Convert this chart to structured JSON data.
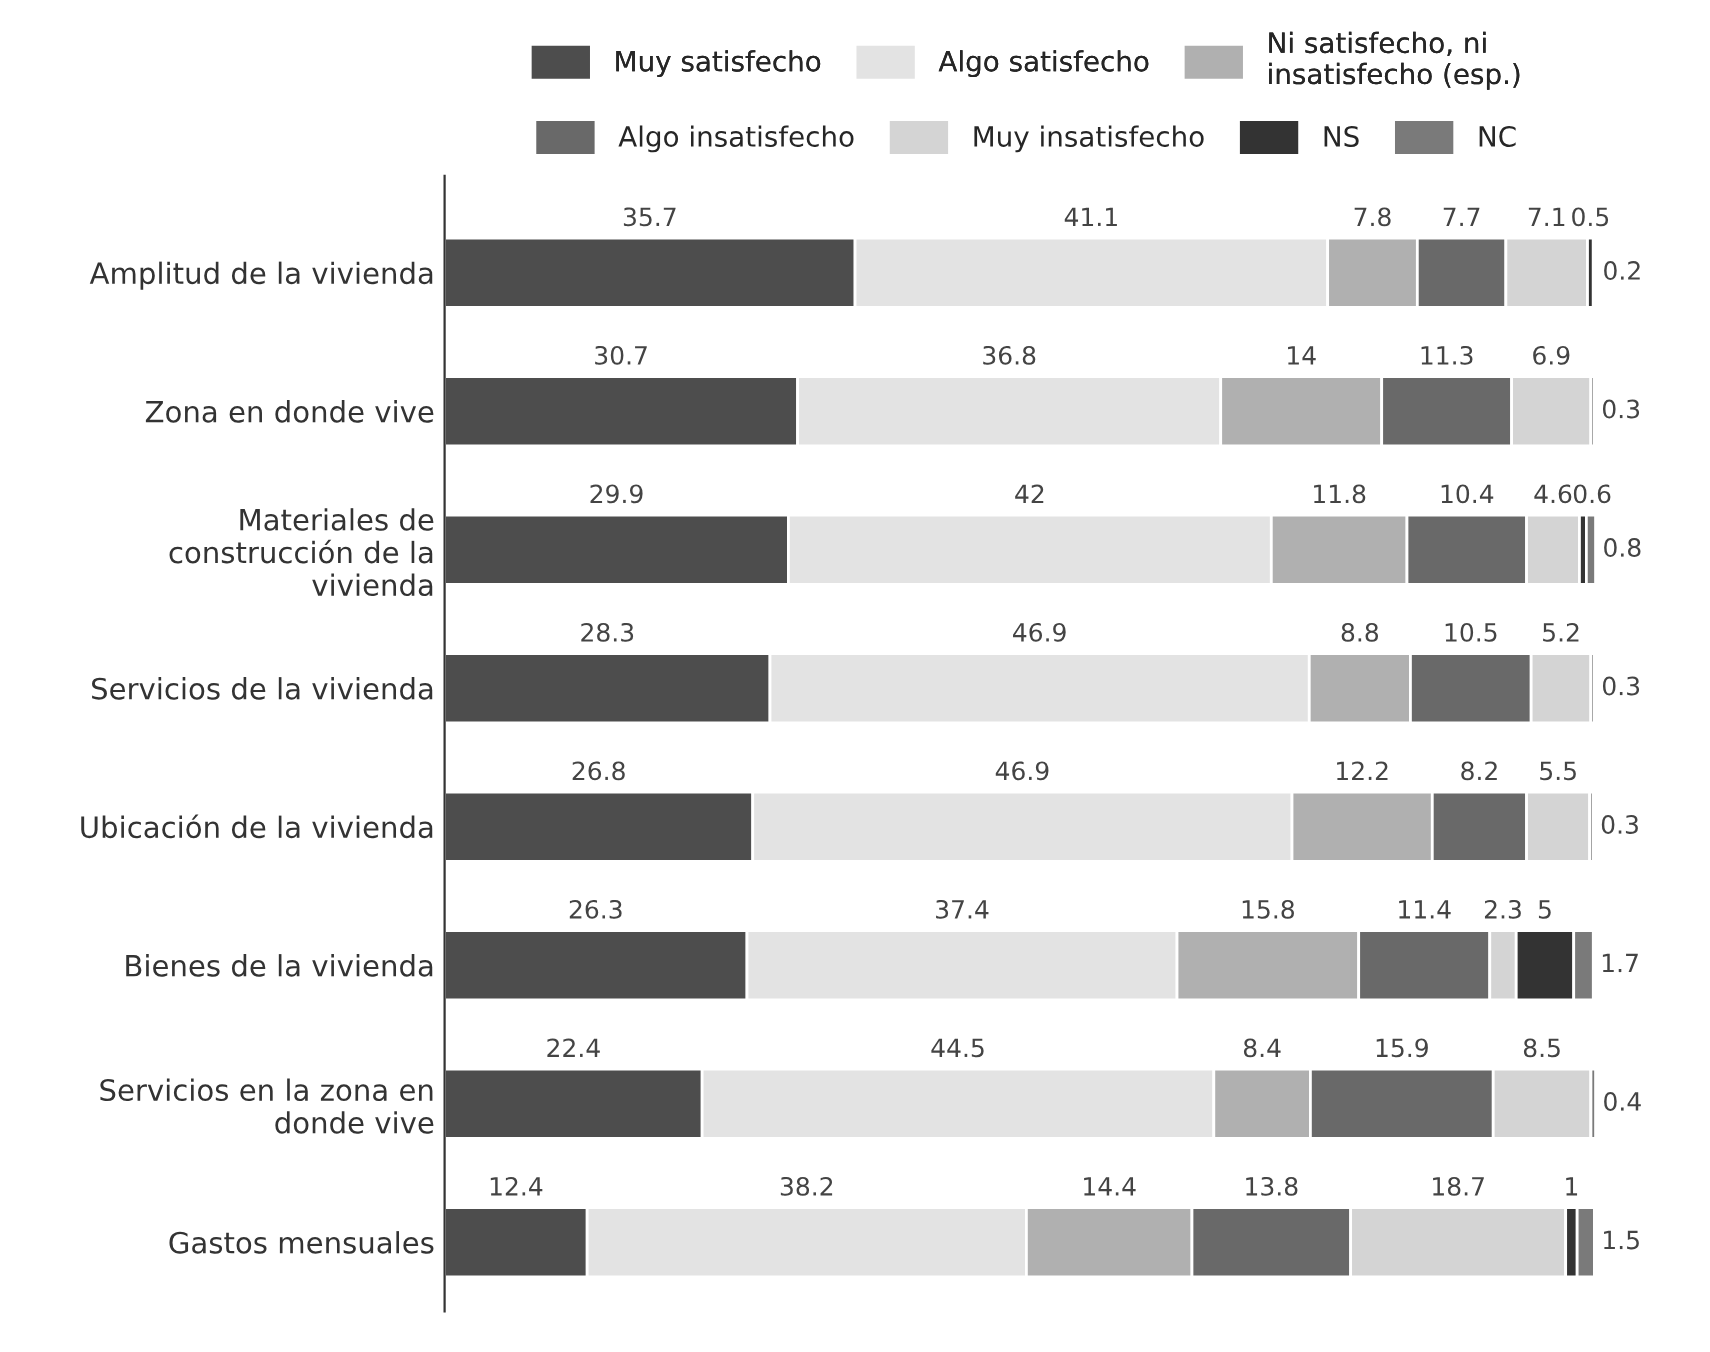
{
  "chart_data": {
    "type": "bar",
    "orientation": "horizontal",
    "stacked": true,
    "data_labels": true,
    "legend": "top",
    "grid": false,
    "categories": [
      "Amplitud de la vivienda",
      "Zona en donde vive",
      "Materiales de construcción de la vivienda",
      "Servicios de la vivienda",
      "Ubicación de la vivienda",
      "Bienes de la vivienda",
      "Servicios en la zona en donde vive",
      "Gastos mensuales"
    ],
    "series": [
      {
        "name": "Muy satisfecho",
        "color": "#4d4d4d",
        "values": [
          35.7,
          30.7,
          29.9,
          28.3,
          26.8,
          26.3,
          22.4,
          12.4
        ]
      },
      {
        "name": "Algo satisfecho",
        "color": "#e3e3e3",
        "values": [
          41.1,
          36.8,
          42,
          46.9,
          46.9,
          37.4,
          44.5,
          38.2
        ]
      },
      {
        "name": "Ni satisfecho, ni insatisfecho (esp.)",
        "color": "#b0b0b0",
        "values": [
          7.8,
          14,
          11.8,
          8.8,
          12.2,
          15.8,
          8.4,
          14.4
        ]
      },
      {
        "name": "Algo insatisfecho",
        "color": "#696969",
        "values": [
          7.7,
          11.3,
          10.4,
          10.5,
          8.2,
          11.4,
          15.9,
          13.8
        ]
      },
      {
        "name": "Muy insatisfecho",
        "color": "#d4d4d4",
        "values": [
          7.1,
          6.9,
          4.6,
          5.2,
          5.5,
          2.3,
          8.5,
          18.7
        ]
      },
      {
        "name": "NS",
        "color": "#333333",
        "values": [
          0.5,
          null,
          0.6,
          null,
          null,
          5,
          null,
          1
        ]
      },
      {
        "name": "NC",
        "color": "#7a7a7a",
        "values": [
          0.2,
          0.3,
          0.8,
          0.3,
          0.3,
          1.7,
          0.4,
          1.5
        ]
      }
    ]
  }
}
